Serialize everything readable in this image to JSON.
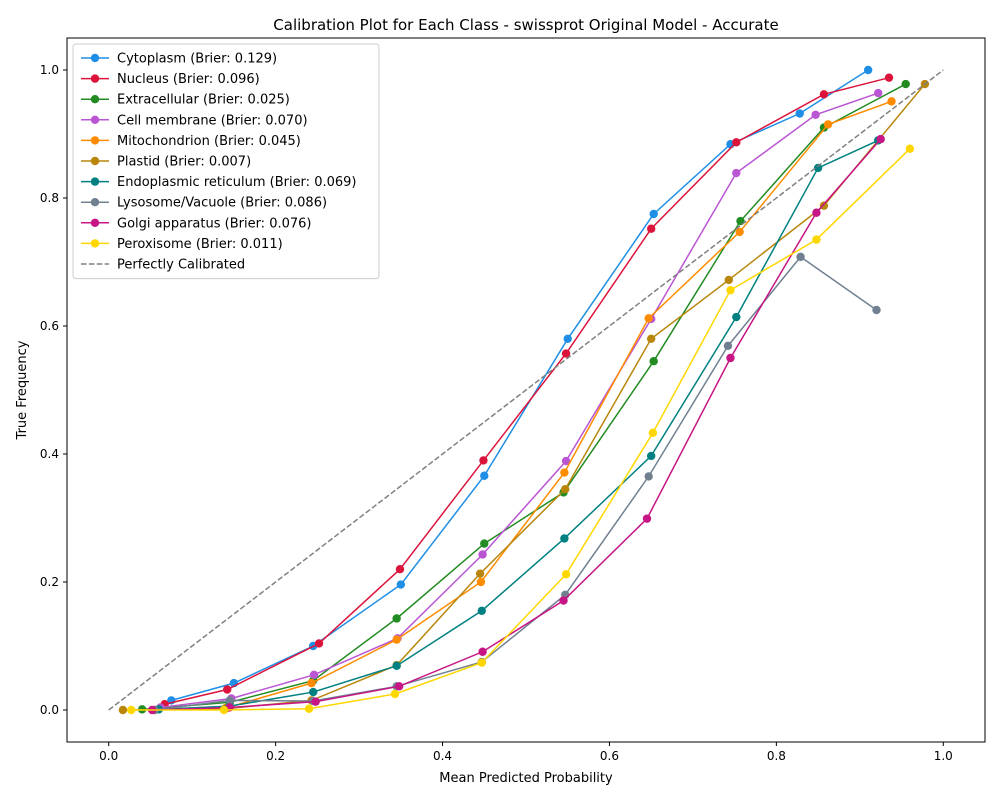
{
  "chart_data": {
    "type": "line",
    "title": "Calibration Plot for Each Class - swissprot Original Model - Accurate",
    "xlabel": "Mean Predicted Probability",
    "ylabel": "True Frequency",
    "xlim": [
      -0.05,
      1.05
    ],
    "ylim": [
      -0.05,
      1.05
    ],
    "xticks": [
      "0.0",
      "0.2",
      "0.4",
      "0.6",
      "0.8",
      "1.0"
    ],
    "yticks": [
      "0.0",
      "0.2",
      "0.4",
      "0.6",
      "0.8",
      "1.0"
    ],
    "grid": false,
    "legend_position": "upper-left",
    "series": [
      {
        "name": "Cytoplasm (Brier: 0.129)",
        "color": "#1f8fe6",
        "marker": "circle",
        "x": [
          0.075,
          0.15,
          0.245,
          0.35,
          0.45,
          0.55,
          0.653,
          0.745,
          0.828,
          0.91
        ],
        "y": [
          0.015,
          0.042,
          0.1,
          0.196,
          0.366,
          0.58,
          0.775,
          0.884,
          0.932,
          1.0
        ]
      },
      {
        "name": "Nucleus (Brier: 0.096)",
        "color": "#dc143c",
        "marker": "circle",
        "x": [
          0.055,
          0.067,
          0.142,
          0.252,
          0.349,
          0.449,
          0.548,
          0.65,
          0.752,
          0.857,
          0.935
        ],
        "y": [
          0.0,
          0.009,
          0.032,
          0.104,
          0.22,
          0.39,
          0.557,
          0.752,
          0.887,
          0.962,
          0.988
        ]
      },
      {
        "name": "Extracellular (Brier: 0.025)",
        "color": "#228b22",
        "marker": "circle",
        "x": [
          0.04,
          0.145,
          0.245,
          0.345,
          0.45,
          0.545,
          0.653,
          0.757,
          0.857,
          0.955
        ],
        "y": [
          0.001,
          0.012,
          0.046,
          0.143,
          0.26,
          0.34,
          0.545,
          0.764,
          0.91,
          0.978
        ]
      },
      {
        "name": "Cell membrane (Brier: 0.070)",
        "color": "#ba55d3",
        "marker": "circle",
        "x": [
          0.062,
          0.147,
          0.246,
          0.346,
          0.448,
          0.548,
          0.65,
          0.752,
          0.847,
          0.922
        ],
        "y": [
          0.004,
          0.018,
          0.055,
          0.112,
          0.243,
          0.389,
          0.611,
          0.839,
          0.93,
          0.964
        ]
      },
      {
        "name": "Mitochondrion (Brier: 0.045)",
        "color": "#ff8c00",
        "marker": "circle",
        "x": [
          0.055,
          0.14,
          0.243,
          0.345,
          0.446,
          0.546,
          0.647,
          0.756,
          0.862,
          0.938
        ],
        "y": [
          0.0,
          0.003,
          0.042,
          0.11,
          0.2,
          0.371,
          0.612,
          0.747,
          0.915,
          0.951
        ]
      },
      {
        "name": "Plastid (Brier: 0.007)",
        "color": "#b8860b",
        "marker": "circle",
        "x": [
          0.017,
          0.14,
          0.243,
          0.345,
          0.445,
          0.547,
          0.65,
          0.743,
          0.857,
          0.978
        ],
        "y": [
          0.0,
          0.002,
          0.015,
          0.07,
          0.213,
          0.345,
          0.58,
          0.672,
          0.788,
          0.978
        ]
      },
      {
        "name": "Endoplasmic reticulum (Brier: 0.069)",
        "color": "#008080",
        "marker": "circle",
        "x": [
          0.06,
          0.145,
          0.245,
          0.345,
          0.447,
          0.546,
          0.65,
          0.752,
          0.85,
          0.922
        ],
        "y": [
          0.001,
          0.006,
          0.028,
          0.069,
          0.155,
          0.268,
          0.397,
          0.614,
          0.847,
          0.89
        ]
      },
      {
        "name": "Lysosome/Vacuole (Brier: 0.086)",
        "color": "#708090",
        "marker": "circle",
        "x": [
          0.055,
          0.145,
          0.245,
          0.345,
          0.447,
          0.547,
          0.647,
          0.742,
          0.829,
          0.92
        ],
        "y": [
          0.0,
          0.015,
          0.014,
          0.037,
          0.075,
          0.18,
          0.365,
          0.569,
          0.708,
          0.625
        ]
      },
      {
        "name": "Golgi apparatus (Brier: 0.076)",
        "color": "#c71585",
        "marker": "circle",
        "x": [
          0.052,
          0.145,
          0.248,
          0.348,
          0.448,
          0.545,
          0.645,
          0.745,
          0.848,
          0.925
        ],
        "y": [
          0.0,
          0.004,
          0.013,
          0.037,
          0.091,
          0.171,
          0.299,
          0.55,
          0.777,
          0.892
        ]
      },
      {
        "name": "Peroxisome (Brier: 0.011)",
        "color": "#ffd700",
        "marker": "circle",
        "x": [
          0.027,
          0.138,
          0.24,
          0.343,
          0.447,
          0.548,
          0.652,
          0.745,
          0.848,
          0.96
        ],
        "y": [
          0.0,
          0.0,
          0.002,
          0.025,
          0.074,
          0.212,
          0.433,
          0.656,
          0.735,
          0.877
        ]
      },
      {
        "name": "Perfectly Calibrated",
        "color": "#808080",
        "marker": "none",
        "dashed": true,
        "x": [
          0.0,
          1.0
        ],
        "y": [
          0.0,
          1.0
        ]
      }
    ]
  }
}
